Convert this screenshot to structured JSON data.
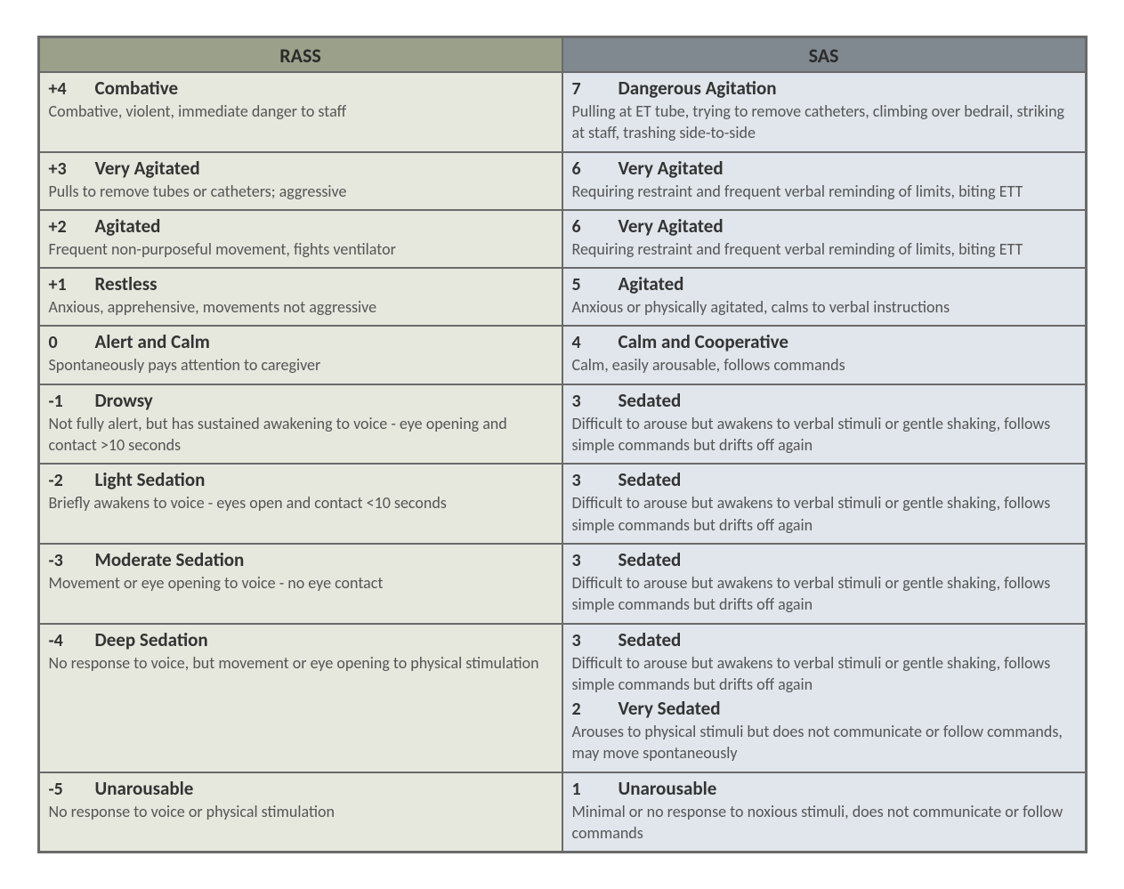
{
  "table": {
    "type": "table",
    "background_color": "#ffffff",
    "border_color": "#6a6a6a",
    "font_family": "Calibri, Arial, sans-serif",
    "columns": [
      {
        "label": "RASS",
        "bg_color": "#9aa08a",
        "cell_bg_color": "#e6e8de",
        "header_fontsize": 22
      },
      {
        "label": "SAS",
        "bg_color": "#808890",
        "cell_bg_color": "#e1e6ec",
        "header_fontsize": 22
      }
    ],
    "score_fontsize": 20,
    "name_fontsize": 21,
    "desc_fontsize": 18,
    "score_color": "#333333",
    "name_color": "#333333",
    "desc_color": "#555555",
    "rows": [
      {
        "rass": [
          {
            "score": "+4",
            "name": "Combative",
            "desc": "Combative, violent, immediate danger to staff"
          }
        ],
        "sas": [
          {
            "score": "7",
            "name": "Dangerous Agitation",
            "desc": "Pulling at ET tube, trying to remove catheters, climbing over bedrail, striking at staff, trashing side-to-side"
          }
        ]
      },
      {
        "rass": [
          {
            "score": "+3",
            "name": "Very Agitated",
            "desc": "Pulls to remove tubes or catheters; aggressive"
          }
        ],
        "sas": [
          {
            "score": "6",
            "name": "Very Agitated",
            "desc": "Requiring restraint and frequent verbal reminding of limits, biting ETT"
          }
        ]
      },
      {
        "rass": [
          {
            "score": "+2",
            "name": "Agitated",
            "desc": "Frequent non-purposeful movement, fights ventilator"
          }
        ],
        "sas": [
          {
            "score": "6",
            "name": "Very Agitated",
            "desc": "Requiring restraint and frequent verbal reminding of limits, biting ETT"
          }
        ]
      },
      {
        "rass": [
          {
            "score": "+1",
            "name": "Restless",
            "desc": "Anxious, apprehensive, movements not aggressive"
          }
        ],
        "sas": [
          {
            "score": "5",
            "name": "Agitated",
            "desc": "Anxious or physically agitated, calms to verbal instructions"
          }
        ]
      },
      {
        "rass": [
          {
            "score": "0",
            "name": "Alert and Calm",
            "desc": "Spontaneously pays attention to caregiver"
          }
        ],
        "sas": [
          {
            "score": "4",
            "name": "Calm and Cooperative",
            "desc": "Calm, easily arousable, follows commands"
          }
        ]
      },
      {
        "rass": [
          {
            "score": "-1",
            "name": "Drowsy",
            "desc": "Not fully alert, but has sustained awakening to voice - eye opening and contact >10 seconds"
          }
        ],
        "sas": [
          {
            "score": "3",
            "name": "Sedated",
            "desc": "Difficult to arouse but awakens to verbal stimuli or gentle shaking, follows simple commands but drifts off again"
          }
        ]
      },
      {
        "rass": [
          {
            "score": "-2",
            "name": "Light Sedation",
            "desc": "Briefly awakens to voice - eyes open and contact <10 seconds"
          }
        ],
        "sas": [
          {
            "score": "3",
            "name": "Sedated",
            "desc": "Difficult to arouse but awakens to verbal stimuli or gentle shaking, follows simple commands but drifts off again"
          }
        ]
      },
      {
        "rass": [
          {
            "score": "-3",
            "name": "Moderate Sedation",
            "desc": "Movement or eye opening to voice - no eye contact"
          }
        ],
        "sas": [
          {
            "score": "3",
            "name": "Sedated",
            "desc": "Difficult to arouse but awakens to verbal stimuli or gentle shaking, follows simple commands but drifts off again"
          }
        ]
      },
      {
        "rass": [
          {
            "score": "-4",
            "name": "Deep Sedation",
            "desc": "No response to voice, but movement or eye opening to physical stimulation"
          }
        ],
        "sas": [
          {
            "score": "3",
            "name": "Sedated",
            "desc": "Difficult to arouse but awakens to verbal stimuli or gentle shaking, follows simple commands but drifts off again"
          },
          {
            "score": "2",
            "name": "Very Sedated",
            "desc": "Arouses to physical stimuli but does not communicate or follow commands, may move spontaneously"
          }
        ]
      },
      {
        "rass": [
          {
            "score": "-5",
            "name": "Unarousable",
            "desc": "No response to voice or physical stimulation"
          }
        ],
        "sas": [
          {
            "score": "1",
            "name": "Unarousable",
            "desc": "Minimal or no response to noxious stimuli, does not communicate or follow commands"
          }
        ]
      }
    ]
  }
}
